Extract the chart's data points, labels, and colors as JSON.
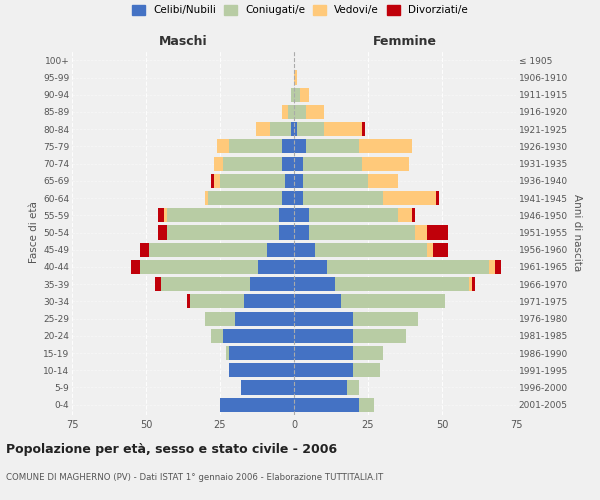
{
  "age_groups": [
    "0-4",
    "5-9",
    "10-14",
    "15-19",
    "20-24",
    "25-29",
    "30-34",
    "35-39",
    "40-44",
    "45-49",
    "50-54",
    "55-59",
    "60-64",
    "65-69",
    "70-74",
    "75-79",
    "80-84",
    "85-89",
    "90-94",
    "95-99",
    "100+"
  ],
  "birth_years": [
    "2001-2005",
    "1996-2000",
    "1991-1995",
    "1986-1990",
    "1981-1985",
    "1976-1980",
    "1971-1975",
    "1966-1970",
    "1961-1965",
    "1956-1960",
    "1951-1955",
    "1946-1950",
    "1941-1945",
    "1936-1940",
    "1931-1935",
    "1926-1930",
    "1921-1925",
    "1916-1920",
    "1911-1915",
    "1906-1910",
    "≤ 1905"
  ],
  "colors": {
    "celibe": "#4472c4",
    "coniugato": "#b8cca4",
    "vedovo": "#ffc97a",
    "divorziato": "#c0000a"
  },
  "maschi": {
    "celibe": [
      25,
      18,
      22,
      22,
      24,
      20,
      17,
      15,
      12,
      9,
      5,
      5,
      4,
      3,
      4,
      4,
      1,
      0,
      0,
      0,
      0
    ],
    "coniugato": [
      0,
      0,
      0,
      1,
      4,
      10,
      18,
      30,
      40,
      40,
      38,
      38,
      25,
      22,
      20,
      18,
      7,
      2,
      1,
      0,
      0
    ],
    "vedovo": [
      0,
      0,
      0,
      0,
      0,
      0,
      0,
      0,
      0,
      0,
      0,
      1,
      1,
      2,
      3,
      4,
      5,
      2,
      0,
      0,
      0
    ],
    "divorziato": [
      0,
      0,
      0,
      0,
      0,
      0,
      1,
      2,
      3,
      3,
      3,
      2,
      0,
      1,
      0,
      0,
      0,
      0,
      0,
      0,
      0
    ]
  },
  "femmine": {
    "nubile": [
      22,
      18,
      20,
      20,
      20,
      20,
      16,
      14,
      11,
      7,
      5,
      5,
      3,
      3,
      3,
      4,
      1,
      0,
      0,
      0,
      0
    ],
    "coniugata": [
      5,
      4,
      9,
      10,
      18,
      22,
      35,
      45,
      55,
      38,
      36,
      30,
      27,
      22,
      20,
      18,
      9,
      4,
      2,
      0,
      0
    ],
    "vedova": [
      0,
      0,
      0,
      0,
      0,
      0,
      0,
      1,
      2,
      2,
      4,
      5,
      18,
      10,
      16,
      18,
      13,
      6,
      3,
      1,
      0
    ],
    "divorziata": [
      0,
      0,
      0,
      0,
      0,
      0,
      0,
      1,
      2,
      5,
      7,
      1,
      1,
      0,
      0,
      0,
      1,
      0,
      0,
      0,
      0
    ]
  },
  "xlim": 75,
  "title": "Popolazione per età, sesso e stato civile - 2006",
  "subtitle": "COMUNE DI MAGHERNO (PV) - Dati ISTAT 1° gennaio 2006 - Elaborazione TUTTITALIA.IT",
  "ylabel_left": "Fasce di età",
  "ylabel_right": "Anni di nascita",
  "legend_labels": [
    "Celibi/Nubili",
    "Coniugati/e",
    "Vedovi/e",
    "Divorziati/e"
  ],
  "legend_colors": [
    "#4472c4",
    "#b8cca4",
    "#ffc97a",
    "#c0000a"
  ],
  "background_color": "#f0f0f0"
}
